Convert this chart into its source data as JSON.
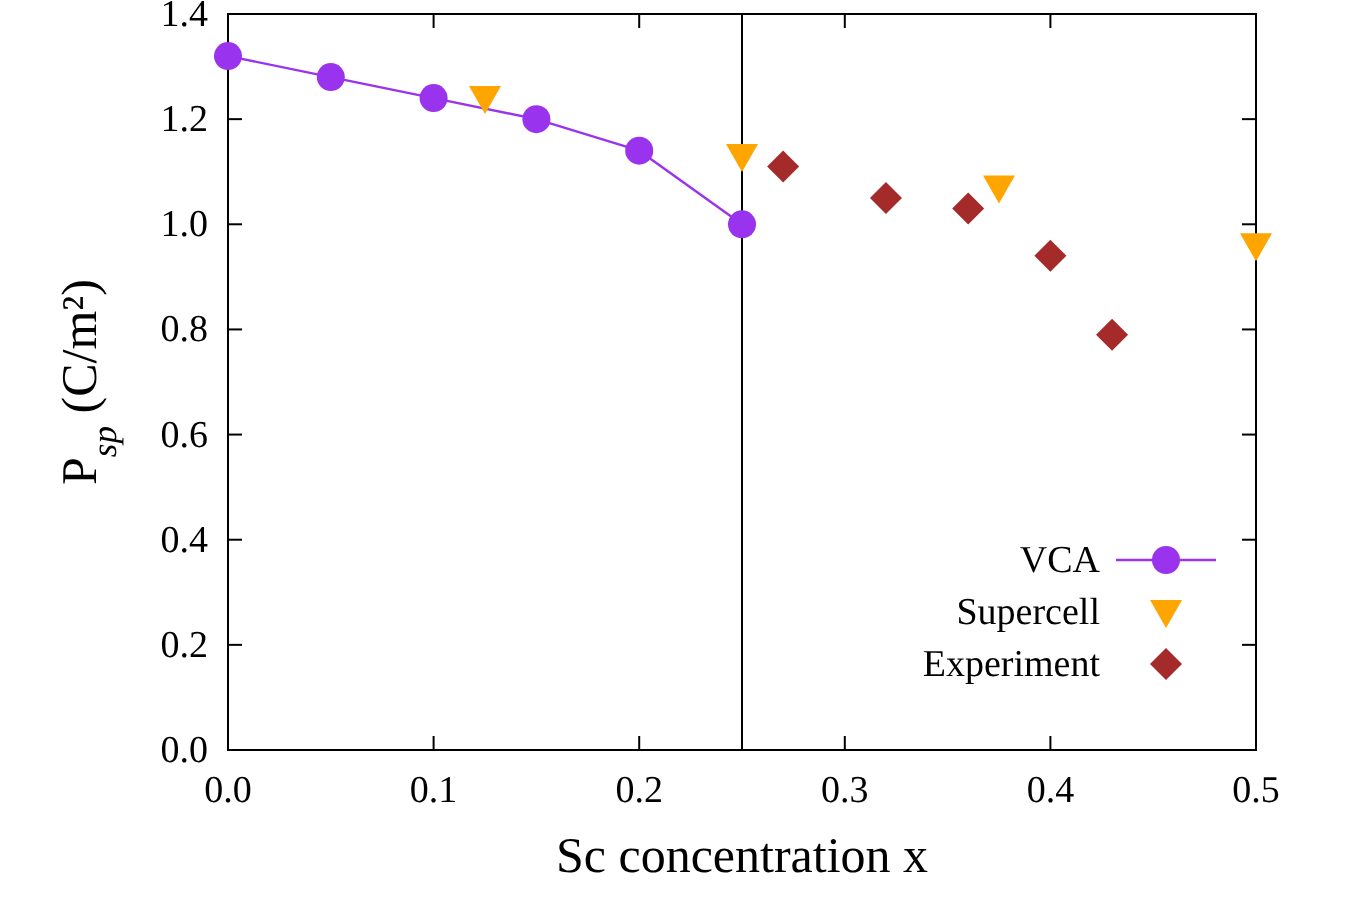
{
  "chart_data": {
    "type": "line",
    "xlabel": "Sc concentration x",
    "ylabel": "P$_{sp}$ (C/m²)",
    "xlim": [
      0,
      0.5
    ],
    "ylim": [
      0,
      1.4
    ],
    "xticks": [
      {
        "value": 0,
        "label": "0.0"
      },
      0.1,
      0.2,
      0.3,
      0.4,
      0.5
    ],
    "yticks": [
      {
        "value": 0,
        "label": "0.0"
      },
      0.2,
      0.4,
      0.6,
      0.8,
      {
        "value": 1,
        "label": "1.0"
      },
      1.2,
      1.4
    ],
    "grid": false,
    "legend": "bottom right",
    "ref_lines": [
      {
        "axis": "x",
        "value": 0.25,
        "color": "#000000"
      }
    ],
    "series": [
      {
        "name": "VCA",
        "marker": "circle",
        "color": "#9933ee",
        "x": [
          0,
          0.05,
          0.1,
          0.15,
          0.2,
          0.25
        ],
        "values": [
          1.32,
          1.28,
          1.24,
          1.2,
          1.14,
          1.0
        ]
      },
      {
        "name": "Supercell",
        "type": "scatter",
        "marker": "triangle",
        "color": "#ffa500",
        "x": [
          0.125,
          0.25,
          0.375,
          0.5
        ],
        "values": [
          1.24,
          1.13,
          1.07,
          0.96
        ]
      },
      {
        "name": "Experiment",
        "type": "scatter",
        "marker": "diamond",
        "color": "#a52a2a",
        "x": [
          0.27,
          0.32,
          0.36,
          0.4,
          0.43
        ],
        "values": [
          1.11,
          1.05,
          1.03,
          0.94,
          0.79
        ]
      }
    ]
  }
}
